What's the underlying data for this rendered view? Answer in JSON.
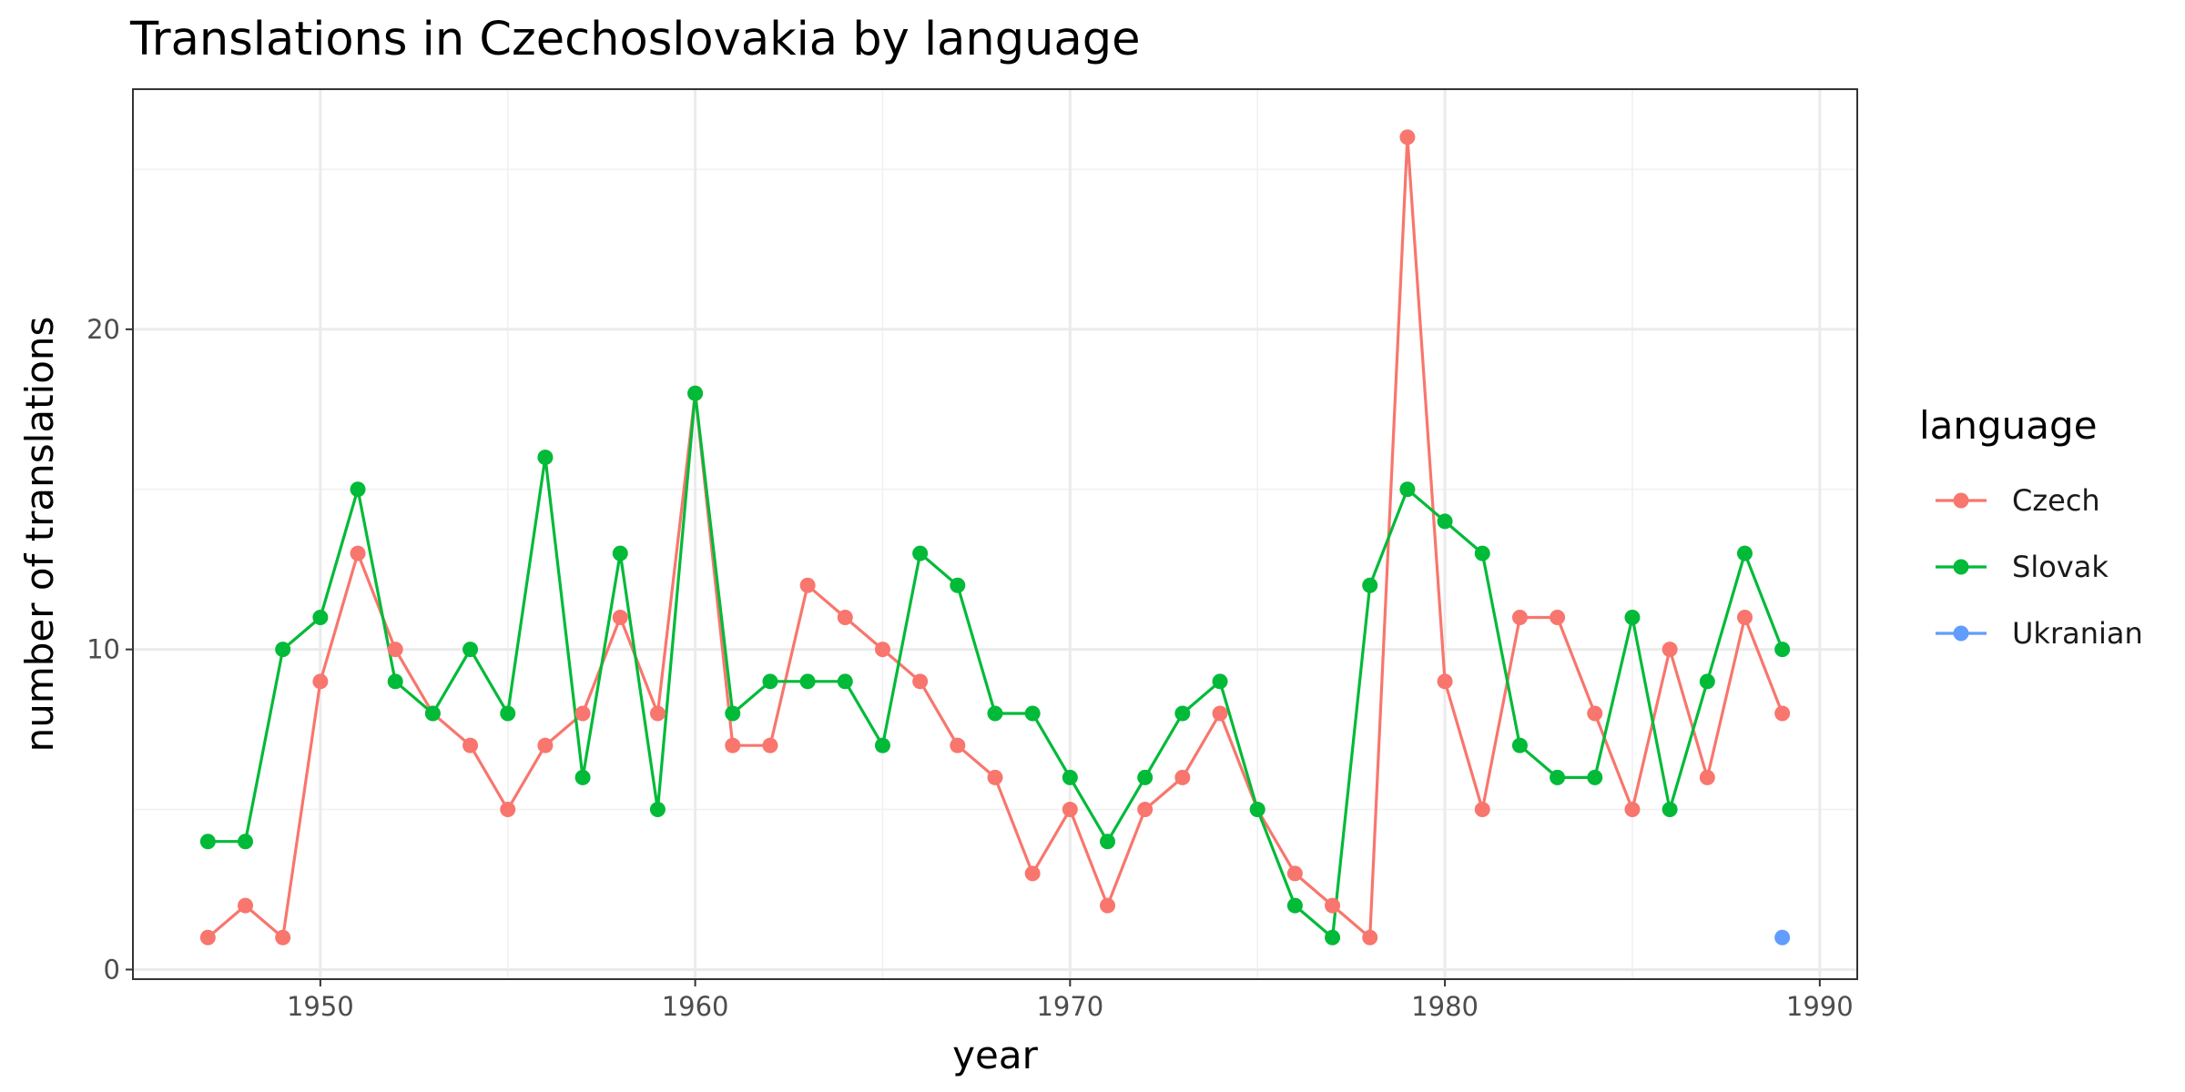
{
  "chart_data": {
    "type": "line",
    "title": "Translations in Czechoslovakia by language",
    "xlabel": "year",
    "ylabel": "number of translations",
    "xlim": [
      1945,
      1991
    ],
    "ylim": [
      -0.3,
      27.5
    ],
    "x_ticks": [
      1950,
      1960,
      1970,
      1980,
      1990
    ],
    "y_ticks": [
      0,
      10,
      20
    ],
    "x_tick_labels": [
      "1950",
      "1960",
      "1970",
      "1980",
      "1990"
    ],
    "y_tick_labels": [
      "0",
      "10",
      "20"
    ],
    "grid": true,
    "legend_title": "language",
    "legend_position": "right",
    "series": [
      {
        "name": "Czech",
        "color": "#F8766D",
        "x": [
          1947,
          1948,
          1949,
          1950,
          1951,
          1952,
          1953,
          1954,
          1955,
          1956,
          1957,
          1958,
          1959,
          1960,
          1961,
          1962,
          1963,
          1964,
          1965,
          1966,
          1967,
          1968,
          1969,
          1970,
          1971,
          1972,
          1973,
          1974,
          1975,
          1976,
          1977,
          1978,
          1979,
          1980,
          1981,
          1982,
          1983,
          1984,
          1985,
          1986,
          1987,
          1988,
          1989
        ],
        "y": [
          1,
          2,
          1,
          9,
          13,
          10,
          8,
          7,
          5,
          7,
          8,
          11,
          8,
          18,
          7,
          7,
          12,
          11,
          10,
          9,
          7,
          6,
          3,
          5,
          2,
          5,
          6,
          8,
          5,
          3,
          2,
          1,
          26,
          9,
          5,
          11,
          11,
          8,
          5,
          10,
          6,
          11,
          8
        ]
      },
      {
        "name": "Slovak",
        "color": "#00BA38",
        "x": [
          1947,
          1948,
          1949,
          1950,
          1951,
          1952,
          1953,
          1954,
          1955,
          1956,
          1957,
          1958,
          1959,
          1960,
          1961,
          1962,
          1963,
          1964,
          1965,
          1966,
          1967,
          1968,
          1969,
          1970,
          1971,
          1972,
          1973,
          1974,
          1975,
          1976,
          1977,
          1978,
          1979,
          1980,
          1981,
          1982,
          1983,
          1984,
          1985,
          1986,
          1987,
          1988,
          1989
        ],
        "y": [
          4,
          4,
          10,
          11,
          15,
          9,
          8,
          10,
          8,
          16,
          6,
          13,
          5,
          18,
          8,
          9,
          9,
          9,
          7,
          13,
          12,
          8,
          8,
          6,
          4,
          6,
          8,
          9,
          5,
          2,
          1,
          12,
          15,
          14,
          13,
          7,
          6,
          6,
          11,
          5,
          9,
          13,
          10
        ]
      },
      {
        "name": "Ukranian",
        "color": "#619CFF",
        "x": [
          1989
        ],
        "y": [
          1
        ]
      }
    ]
  }
}
